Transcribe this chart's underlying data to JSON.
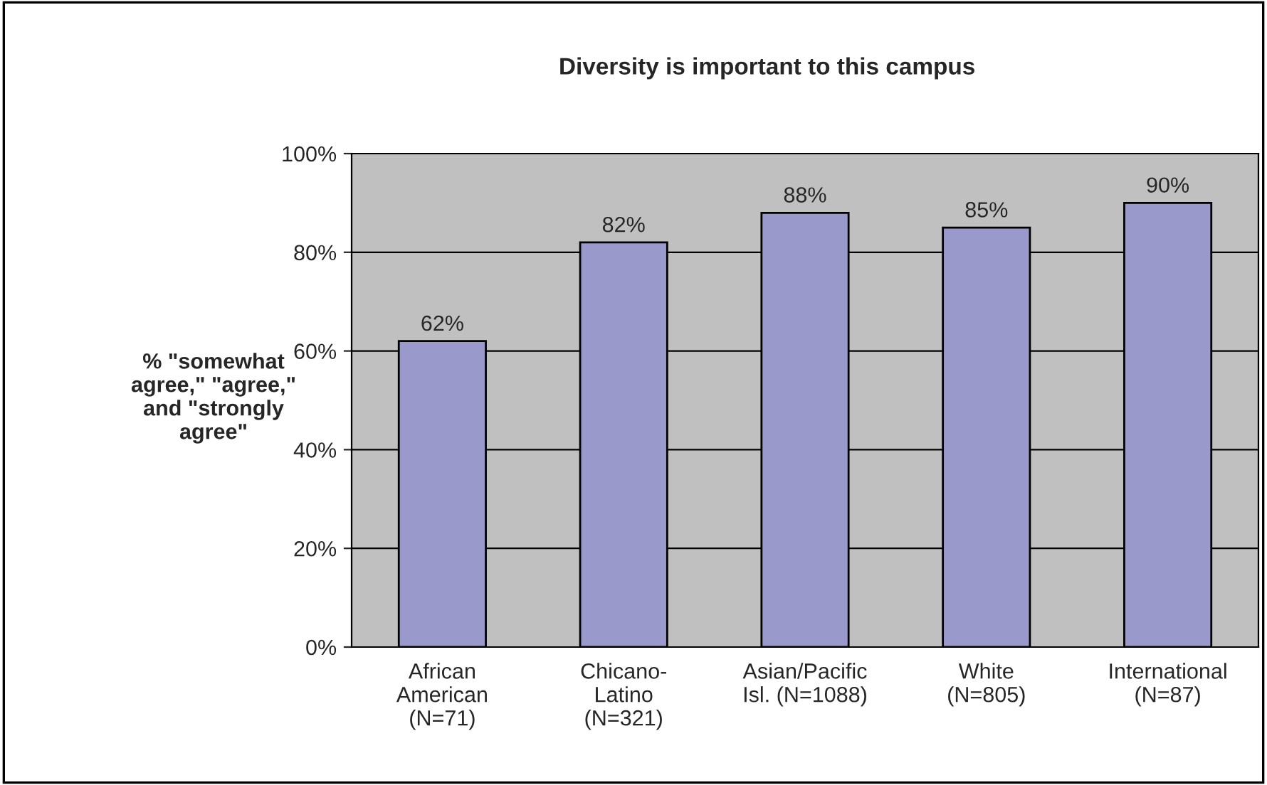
{
  "chart_data": {
    "type": "bar",
    "title": "Diversity is important to this campus",
    "ylabel": "% \"somewhat\nagree,\" \"agree,\"\nand \"strongly\nagree\"",
    "categories": [
      "African\nAmerican\n(N=71)",
      "Chicano-\nLatino\n(N=321)",
      "Asian/Pacific\nIsl. (N=1088)",
      "White\n(N=805)",
      "International\n(N=87)"
    ],
    "values": [
      62,
      82,
      88,
      85,
      90
    ],
    "color": "#9999cc",
    "value_labels": [
      "62%",
      "82%",
      "88%",
      "85%",
      "90%"
    ],
    "ylim": [
      0,
      100
    ],
    "yticks": [
      {
        "value": 0,
        "label": "0%"
      },
      {
        "value": 20,
        "label": "20%"
      },
      {
        "value": 40,
        "label": "40%"
      },
      {
        "value": 60,
        "label": "60%"
      },
      {
        "value": 80,
        "label": "80%"
      },
      {
        "value": 100,
        "label": "100%"
      }
    ],
    "grid": "y",
    "legend": false
  }
}
